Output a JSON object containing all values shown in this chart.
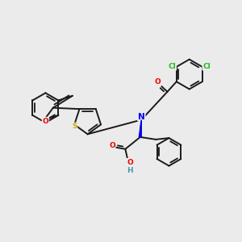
{
  "background_color": "#ebebeb",
  "bond_color": "#1a1a1a",
  "bond_width": 1.4,
  "atom_colors": {
    "N": "#0000ee",
    "O": "#ee0000",
    "S": "#ccaa00",
    "Cl": "#22bb22",
    "OH_color": "#4499aa",
    "C": "#1a1a1a"
  },
  "figsize": [
    3.0,
    3.0
  ],
  "dpi": 100
}
